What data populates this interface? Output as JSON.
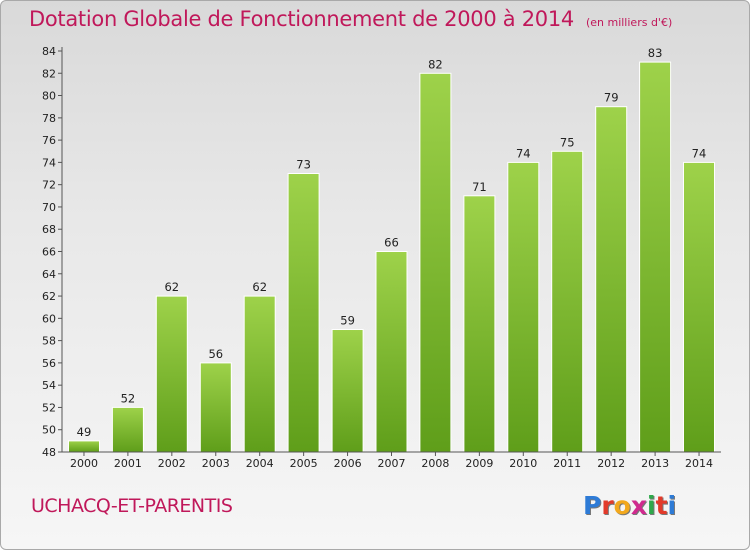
{
  "header": {
    "title": "Dotation Globale de Fonctionnement de 2000 à 2014",
    "unit": "(en milliers d'€)"
  },
  "footer": {
    "commune": "UCHACQ-ET-PARENTIS",
    "logo_letters": [
      "P",
      "r",
      "o",
      "x",
      "i",
      "t",
      "i"
    ],
    "logo_colors": [
      "#2e7bd6",
      "#e23a2a",
      "#f2a81d",
      "#d02a8e",
      "#2ea84a",
      "#e23a2a",
      "#2e7bd6"
    ]
  },
  "chart_data": {
    "type": "bar",
    "title": "Dotation Globale de Fonctionnement de 2000 à 2014",
    "categories": [
      "2000",
      "2001",
      "2002",
      "2003",
      "2004",
      "2005",
      "2006",
      "2007",
      "2008",
      "2009",
      "2010",
      "2011",
      "2012",
      "2013",
      "2014"
    ],
    "values": [
      49,
      52,
      62,
      56,
      62,
      73,
      59,
      66,
      82,
      71,
      74,
      75,
      79,
      83,
      74
    ],
    "ylim": [
      48,
      84
    ],
    "yticks": [
      48,
      50,
      52,
      54,
      56,
      58,
      60,
      62,
      64,
      66,
      68,
      70,
      72,
      74,
      76,
      78,
      80,
      82,
      84
    ],
    "grid": false,
    "colors": {
      "bar_light": "#9ed24a",
      "bar_dark": "#5f9e1a",
      "axis": "#555555"
    }
  }
}
